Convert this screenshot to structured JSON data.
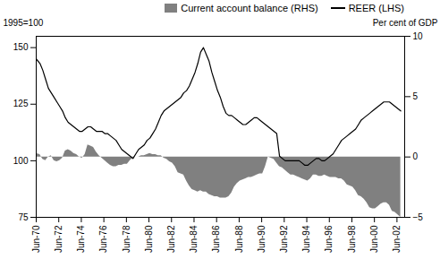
{
  "chart_data": {
    "type": "line",
    "ylabel": "1995=100",
    "y2label": "Per cent of GDP",
    "xlim": [
      1970.417,
      2003.1
    ],
    "xticks": [
      {
        "value": 1970.417,
        "label": "Jun-70"
      },
      {
        "value": 1972.417,
        "label": "Jun-72"
      },
      {
        "value": 1974.417,
        "label": "Jun-74"
      },
      {
        "value": 1976.417,
        "label": "Jun-76"
      },
      {
        "value": 1978.417,
        "label": "Jun-78"
      },
      {
        "value": 1980.417,
        "label": "Jun-80"
      },
      {
        "value": 1982.417,
        "label": "Jun-82"
      },
      {
        "value": 1984.417,
        "label": "Jun-84"
      },
      {
        "value": 1986.417,
        "label": "Jun-86"
      },
      {
        "value": 1988.417,
        "label": "Jun-88"
      },
      {
        "value": 1990.417,
        "label": "Jun-90"
      },
      {
        "value": 1992.417,
        "label": "Jun-92"
      },
      {
        "value": 1994.417,
        "label": "Jun-94"
      },
      {
        "value": 1996.417,
        "label": "Jun-96"
      },
      {
        "value": 1998.417,
        "label": "Jun-98"
      },
      {
        "value": 2000.417,
        "label": "Jun-00"
      },
      {
        "value": 2002.417,
        "label": "Jun-02"
      }
    ],
    "ylim": [
      75,
      155
    ],
    "yticks": [
      75,
      100,
      125,
      150
    ],
    "y2lim": [
      -5,
      10
    ],
    "y2ticks": [
      -5,
      0,
      5,
      10
    ],
    "grid": false,
    "legend": "upper right",
    "x": [
      1970.417,
      1970.75,
      1971.0,
      1971.25,
      1971.5,
      1971.75,
      1972.0,
      1972.25,
      1972.5,
      1972.75,
      1973.0,
      1973.25,
      1973.5,
      1973.75,
      1974.0,
      1974.25,
      1974.5,
      1974.75,
      1975.0,
      1975.25,
      1975.5,
      1975.75,
      1976.0,
      1976.25,
      1976.5,
      1976.75,
      1977.0,
      1977.25,
      1977.5,
      1977.75,
      1978.0,
      1978.25,
      1978.5,
      1978.75,
      1979.0,
      1979.25,
      1979.5,
      1979.75,
      1980.0,
      1980.25,
      1980.5,
      1980.75,
      1981.0,
      1981.25,
      1981.5,
      1981.75,
      1982.0,
      1982.25,
      1982.5,
      1982.75,
      1983.0,
      1983.25,
      1983.5,
      1983.75,
      1984.0,
      1984.25,
      1984.5,
      1984.75,
      1985.0,
      1985.25,
      1985.5,
      1985.75,
      1986.0,
      1986.25,
      1986.5,
      1986.75,
      1987.0,
      1987.25,
      1987.5,
      1987.75,
      1988.0,
      1988.25,
      1988.5,
      1988.75,
      1989.0,
      1989.25,
      1989.5,
      1989.75,
      1990.0,
      1990.25,
      1990.5,
      1990.75,
      1991.0,
      1991.25,
      1991.5,
      1991.75,
      1992.0,
      1992.25,
      1992.5,
      1992.75,
      1993.0,
      1993.25,
      1993.5,
      1993.75,
      1994.0,
      1994.25,
      1994.5,
      1994.75,
      1995.0,
      1995.25,
      1995.5,
      1995.75,
      1996.0,
      1996.25,
      1996.5,
      1996.75,
      1997.0,
      1997.25,
      1997.5,
      1997.75,
      1998.0,
      1998.25,
      1998.5,
      1998.75,
      1999.0,
      1999.25,
      1999.5,
      1999.75,
      2000.0,
      2000.25,
      2000.5,
      2000.75,
      2001.0,
      2001.25,
      2001.5,
      2001.75,
      2002.0,
      2002.25,
      2002.5,
      2002.75
    ],
    "series": [
      {
        "name": "Current account balance (RHS)",
        "type": "area",
        "axis": "y2",
        "color": "#808080",
        "values": [
          0.3,
          0.2,
          -0.2,
          -0.3,
          0.0,
          0.1,
          -0.3,
          -0.4,
          -0.3,
          -0.1,
          0.5,
          0.6,
          0.5,
          0.3,
          0.2,
          0.0,
          -0.1,
          0.2,
          1.0,
          0.9,
          0.8,
          0.4,
          0.1,
          -0.1,
          -0.3,
          -0.5,
          -0.7,
          -0.8,
          -0.8,
          -0.7,
          -0.7,
          -0.6,
          -0.6,
          -0.3,
          -0.1,
          0.0,
          0.0,
          0.1,
          0.1,
          0.2,
          0.3,
          0.2,
          0.2,
          0.1,
          0.1,
          -0.1,
          -0.2,
          -0.4,
          -0.5,
          -0.8,
          -1.3,
          -1.4,
          -1.5,
          -2.0,
          -2.4,
          -2.7,
          -2.8,
          -2.9,
          -2.8,
          -2.9,
          -2.9,
          -3.1,
          -3.2,
          -3.3,
          -3.3,
          -3.4,
          -3.4,
          -3.4,
          -3.3,
          -3.0,
          -2.5,
          -2.2,
          -2.0,
          -1.9,
          -1.8,
          -1.7,
          -1.7,
          -1.6,
          -1.5,
          -1.4,
          -1.4,
          -0.8,
          0.0,
          -0.1,
          -0.2,
          -0.5,
          -0.8,
          -0.9,
          -1.1,
          -1.3,
          -1.5,
          -1.5,
          -1.6,
          -1.7,
          -1.8,
          -1.9,
          -2.0,
          -1.8,
          -1.5,
          -1.5,
          -1.6,
          -1.6,
          -1.5,
          -1.6,
          -1.7,
          -1.7,
          -1.7,
          -1.8,
          -1.8,
          -2.0,
          -2.3,
          -2.4,
          -2.5,
          -2.8,
          -3.2,
          -3.3,
          -3.5,
          -3.8,
          -4.2,
          -4.3,
          -4.3,
          -4.1,
          -3.9,
          -3.8,
          -3.8,
          -4.0,
          -4.5,
          -4.6,
          -4.8,
          -5.0
        ]
      },
      {
        "name": "REER (LHS)",
        "type": "line",
        "color": "#000000",
        "values": [
          145,
          143,
          140,
          136,
          132,
          130,
          128,
          126,
          124,
          122,
          119,
          117,
          116,
          115,
          114,
          113,
          113,
          114,
          115,
          115,
          114,
          113,
          113,
          113,
          112,
          112,
          111,
          110,
          109,
          107,
          105,
          104,
          103,
          102,
          101,
          103,
          105,
          106,
          107,
          109,
          110,
          112,
          114,
          117,
          120,
          122,
          123,
          124,
          125,
          126,
          127,
          128,
          130,
          131,
          133,
          136,
          139,
          143,
          148,
          150,
          147,
          144,
          139,
          135,
          131,
          128,
          124,
          121,
          120,
          120,
          119,
          118,
          117,
          116,
          116,
          117,
          118,
          119,
          119,
          118,
          117,
          116,
          115,
          114,
          113,
          112,
          102,
          101,
          100,
          100,
          100,
          100,
          100,
          100,
          99,
          98,
          98,
          99,
          100,
          101,
          101,
          100,
          100,
          101,
          102,
          103,
          105,
          107,
          109,
          110,
          111,
          112,
          113,
          114,
          116,
          118,
          119,
          120,
          121,
          122,
          123,
          124,
          125,
          126,
          126,
          126,
          125,
          124,
          123,
          122
        ]
      }
    ]
  }
}
